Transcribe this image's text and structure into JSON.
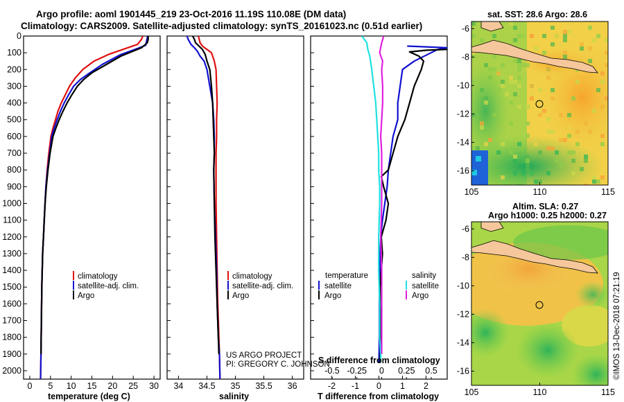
{
  "title": {
    "line1": "Argo profile: aoml 1901445_219 23-Oct-2016 11.19S 110.08E (DM data)",
    "line2": "Climatology: CARS2009. Satellite-adjusted climatology: synTS_20161023.nc (0.51d earlier)"
  },
  "watermark": "©IMOS 13-Dec-2018 07:21:19",
  "credit": [
    "US ARGO PROJECT",
    "PI: GREGORY C. JOHNSON"
  ],
  "colors": {
    "climatology": "#e01010",
    "satellite": "#1010d0",
    "argo": "#000000",
    "salt_satellite": "#20e0e0",
    "salt_argo": "#e020e0",
    "land": "#f5c79b"
  },
  "depth_axis": {
    "range": [
      0,
      2050
    ],
    "ticks": [
      0,
      100,
      200,
      300,
      400,
      500,
      600,
      700,
      800,
      900,
      1000,
      1100,
      1200,
      1300,
      1400,
      1500,
      1600,
      1700,
      1800,
      1900,
      2000
    ]
  },
  "chart_data": [
    {
      "type": "line",
      "id": "temperature",
      "xlabel": "temperature (deg C)",
      "xlim": [
        -1.5,
        31.5
      ],
      "xticks": [
        0,
        5,
        10,
        15,
        20,
        25,
        30
      ],
      "ylim": [
        2050,
        0
      ],
      "legend": [
        "climatology",
        "satellite-adj. clim.",
        "Argo"
      ],
      "series": [
        {
          "name": "climatology",
          "color": "#e01010",
          "x": [
            27.3,
            27.0,
            26.0,
            22.5,
            19.0,
            15.5,
            12.8,
            11.0,
            9.6,
            8.6,
            7.6,
            6.8,
            6.2,
            5.6,
            5.1,
            4.6,
            4.2,
            3.9,
            3.7,
            3.5,
            3.3,
            3.1,
            3.0,
            2.9,
            2.8,
            2.7,
            2.6
          ],
          "y": [
            0,
            20,
            50,
            80,
            110,
            150,
            200,
            250,
            300,
            350,
            400,
            450,
            500,
            550,
            600,
            700,
            800,
            900,
            1000,
            1100,
            1200,
            1300,
            1400,
            1500,
            1700,
            1900,
            2050
          ]
        },
        {
          "name": "satellite-adj. clim.",
          "color": "#1010d0",
          "x": [
            28.5,
            28.3,
            28.0,
            26.5,
            22.0,
            17.5,
            14.5,
            12.2,
            10.6,
            9.4,
            8.3,
            7.4,
            6.6,
            5.9,
            5.3,
            4.8,
            4.3,
            3.9,
            3.7,
            3.5,
            3.3,
            3.1,
            3.0,
            2.9,
            2.8,
            2.7,
            2.6
          ],
          "y": [
            0,
            20,
            55,
            70,
            110,
            170,
            220,
            260,
            300,
            350,
            400,
            450,
            500,
            550,
            600,
            700,
            800,
            900,
            1000,
            1100,
            1200,
            1300,
            1400,
            1500,
            1700,
            1900,
            2050
          ]
        },
        {
          "name": "Argo",
          "color": "#000000",
          "x": [
            28.6,
            28.6,
            28.4,
            27.0,
            22.0,
            18.5,
            15.0,
            13.0,
            11.5,
            10.2,
            9.0,
            8.0,
            7.1,
            6.3,
            5.6,
            4.9,
            4.4,
            4.0,
            3.7,
            3.5,
            3.3,
            3.1,
            3.0,
            2.9,
            2.8,
            2.7
          ],
          "y": [
            0,
            20,
            40,
            70,
            120,
            170,
            220,
            260,
            300,
            350,
            400,
            450,
            500,
            550,
            600,
            700,
            800,
            900,
            1000,
            1100,
            1200,
            1300,
            1400,
            1500,
            1700,
            1900
          ]
        }
      ]
    },
    {
      "type": "line",
      "id": "salinity",
      "xlabel": "salinity",
      "xlim": [
        33.8,
        36.2
      ],
      "xticks": [
        34,
        34.5,
        35,
        35.5,
        36
      ],
      "xticklabels": [
        "34",
        "34.5",
        "35",
        "35.5",
        "36"
      ],
      "ylim": [
        2050,
        0
      ],
      "legend": [
        "climatology",
        "satellite-adj. clim.",
        "Argo"
      ],
      "series": [
        {
          "name": "climatology",
          "color": "#e01010",
          "x": [
            34.35,
            34.38,
            34.42,
            34.5,
            34.58,
            34.63,
            34.66,
            34.67,
            34.68,
            34.67,
            34.67,
            34.66,
            34.66,
            34.66,
            34.67,
            34.68,
            34.69,
            34.7,
            34.71,
            34.72,
            34.73
          ],
          "y": [
            0,
            40,
            60,
            80,
            100,
            150,
            200,
            300,
            400,
            500,
            600,
            700,
            800,
            1000,
            1200,
            1400,
            1600,
            1700,
            1800,
            1900,
            2050
          ]
        },
        {
          "name": "satellite-adj. clim.",
          "color": "#1010d0",
          "x": [
            34.15,
            34.17,
            34.22,
            34.28,
            34.33,
            34.38,
            34.45,
            34.5,
            34.55,
            34.6,
            34.62,
            34.63,
            34.63,
            34.62,
            34.63,
            34.65,
            34.67,
            34.68,
            34.7,
            34.72,
            34.73
          ],
          "y": [
            0,
            20,
            50,
            70,
            90,
            120,
            150,
            200,
            300,
            400,
            500,
            600,
            700,
            800,
            1000,
            1200,
            1400,
            1600,
            1800,
            1900,
            2050
          ]
        },
        {
          "name": "Argo",
          "color": "#000000",
          "x": [
            34.25,
            34.28,
            34.3,
            34.36,
            34.42,
            34.47,
            34.5,
            34.55,
            34.58,
            34.6,
            34.61,
            34.62,
            34.63,
            34.62,
            34.63,
            34.64,
            34.66,
            34.68,
            34.7,
            34.71
          ],
          "y": [
            0,
            20,
            40,
            60,
            80,
            110,
            150,
            200,
            300,
            400,
            500,
            600,
            700,
            800,
            1000,
            1200,
            1400,
            1600,
            1800,
            1900
          ]
        }
      ]
    },
    {
      "type": "line",
      "id": "difference",
      "xlabel": "T difference from climatology",
      "xlabel_top": "S difference from climatology",
      "xlim": [
        -2.9,
        2.9
      ],
      "xticks": [
        -2,
        -1,
        0,
        1,
        2
      ],
      "xticklabels": [
        "-2",
        "-1",
        "0",
        "1",
        "2"
      ],
      "sticks": [
        -0.5,
        -0.25,
        0,
        0.25,
        0.5
      ],
      "sticklabels": [
        "-0.5",
        "-0.25",
        "0",
        "0.25",
        "0.5"
      ],
      "ylim": [
        2050,
        0
      ],
      "legend_left": {
        "heading": "temperature",
        "items": [
          "satellite",
          "Argo"
        ]
      },
      "legend_right": {
        "heading": "salinity",
        "items": [
          "satellite",
          "Argo"
        ]
      },
      "series": [
        {
          "name": "satellite",
          "quantity": "temperature",
          "color": "#1010d0",
          "x": [
            1.2,
            2.9,
            2.5,
            1.5,
            1.0,
            0.9,
            0.8,
            0.8,
            0.6,
            0.5,
            0.4,
            0.35,
            0.25,
            0.15,
            0.08,
            0.05,
            0.05,
            0.03,
            0.02,
            0.02,
            0.0
          ],
          "y": [
            60,
            70,
            80,
            150,
            200,
            300,
            400,
            500,
            600,
            700,
            800,
            900,
            1000,
            1100,
            1200,
            1300,
            1400,
            1500,
            1600,
            1800,
            1950
          ]
        },
        {
          "name": "Argo",
          "quantity": "temperature",
          "color": "#000000",
          "x": [
            2.9,
            2.0,
            1.3,
            1.7,
            1.9,
            1.8,
            1.5,
            1.3,
            1.1,
            0.8,
            0.6,
            0.4,
            0.1,
            0.2,
            0.4,
            0.3,
            0.1,
            0.15,
            0.1,
            0.05,
            0.05,
            0.08,
            0.05
          ],
          "y": [
            80,
            85,
            95,
            120,
            150,
            200,
            300,
            400,
            500,
            600,
            700,
            800,
            840,
            900,
            1000,
            1100,
            1200,
            1300,
            1400,
            1500,
            1600,
            1800,
            1950
          ]
        },
        {
          "name": "satellite",
          "quantity": "salinity",
          "color": "#20e0e0",
          "x": [
            -0.2,
            -0.15,
            -0.14,
            -0.12,
            -0.1,
            -0.08,
            -0.06,
            -0.05,
            -0.04,
            -0.03,
            -0.03,
            -0.02,
            -0.02,
            -0.03,
            -0.03,
            -0.02,
            -0.02,
            -0.01,
            -0.01
          ],
          "y": [
            0,
            40,
            80,
            120,
            200,
            300,
            400,
            500,
            600,
            700,
            800,
            900,
            1000,
            1200,
            1400,
            1600,
            1800,
            1900,
            1950
          ]
        },
        {
          "name": "Argo",
          "quantity": "salinity",
          "color": "#e020e0",
          "x": [
            0.02,
            0.0,
            -0.02,
            0.01,
            0.0,
            0.01,
            0.01,
            0.0,
            -0.01,
            0.0,
            0.0,
            0.0,
            -0.01,
            0.0,
            0.0,
            0.0,
            0.0,
            0.0
          ],
          "y": [
            0,
            40,
            100,
            150,
            200,
            300,
            400,
            500,
            600,
            700,
            800,
            1000,
            1200,
            1400,
            1600,
            1700,
            1800,
            1900
          ]
        }
      ]
    },
    {
      "type": "heatmap",
      "id": "sst-map",
      "title": "sat. SST: 28.6 Argo: 28.6",
      "xlim": [
        105,
        115
      ],
      "ylim": [
        -17,
        -5.5
      ],
      "xticks": [
        105,
        110,
        115
      ],
      "yticks": [
        -6,
        -8,
        -10,
        -12,
        -14,
        -16
      ],
      "argo_position": [
        110.08,
        -11.19
      ]
    },
    {
      "type": "heatmap",
      "id": "sla-map",
      "title_lines": [
        "Altim. SLA: 0.27",
        "Argo h1000: 0.25 h2000: 0.27"
      ],
      "xlim": [
        105,
        115
      ],
      "ylim": [
        -17,
        -5.5
      ],
      "xticks": [
        105,
        110,
        115
      ],
      "yticks": [
        -6,
        -8,
        -10,
        -12,
        -14,
        -16
      ],
      "argo_position": [
        110.08,
        -11.19
      ]
    }
  ]
}
